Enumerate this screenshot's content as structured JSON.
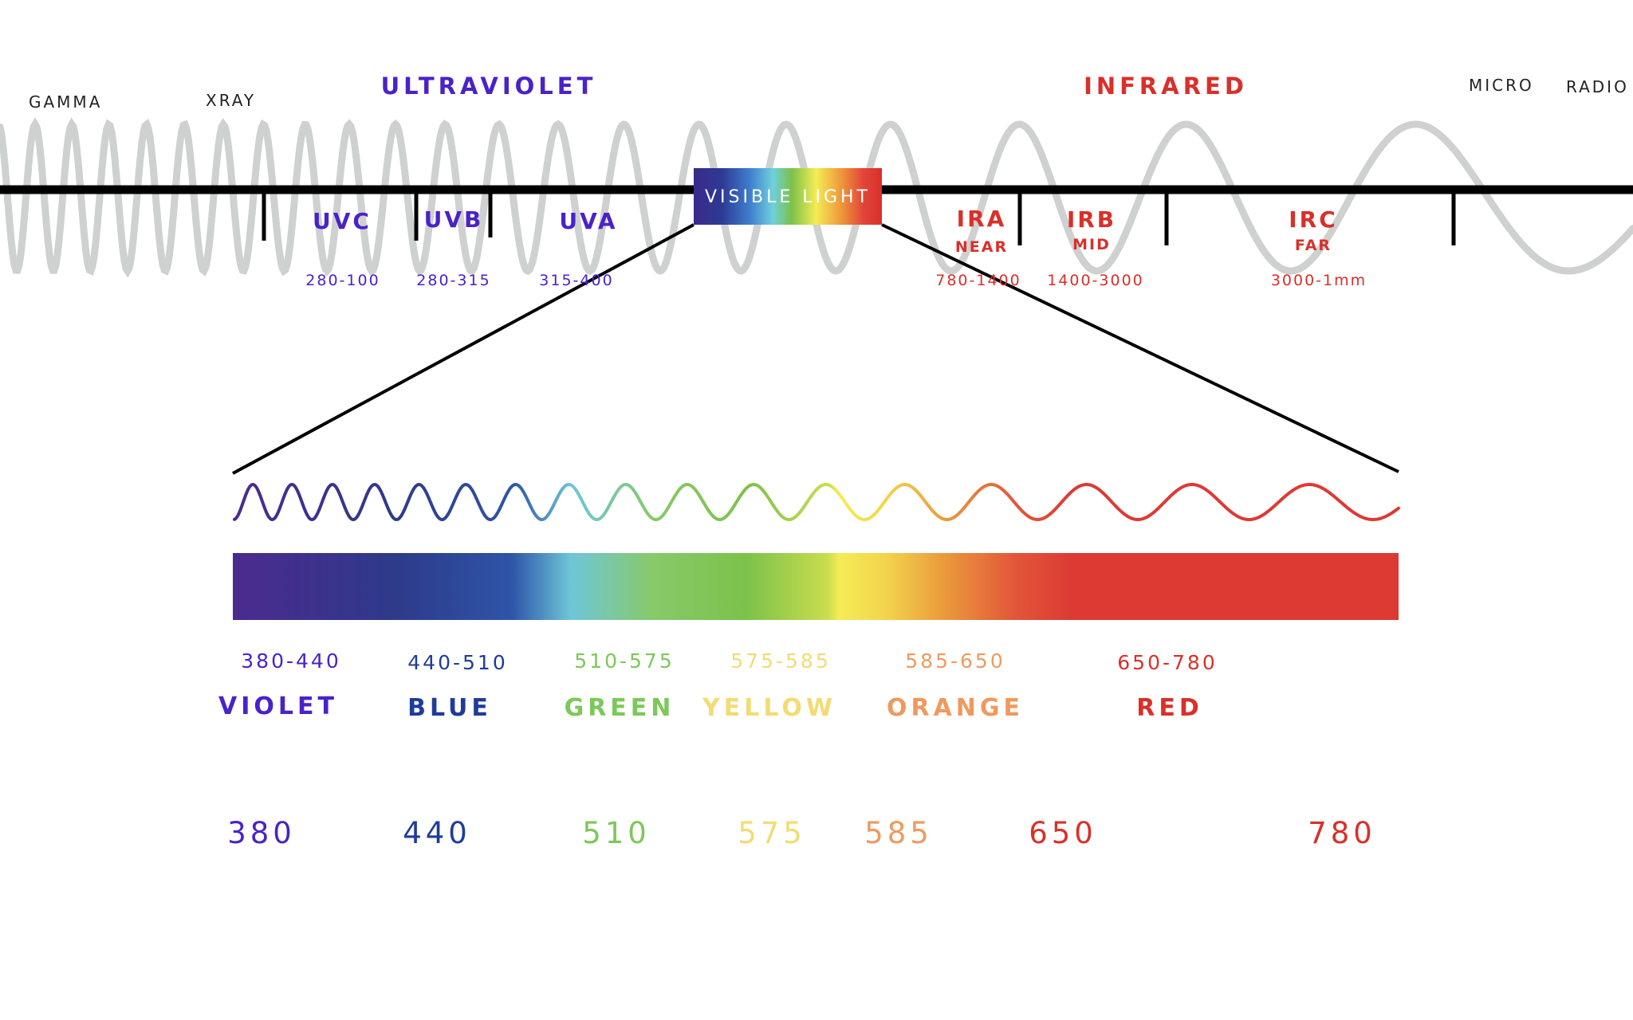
{
  "spectrum": {
    "gamma": "GAMMA",
    "xray": "XRAY",
    "ultraviolet": "ULTRAVIOLET",
    "infrared": "INFRARED",
    "micro": "MICRO",
    "radio": "RADIO",
    "visible_light": "VISIBLE LIGHT"
  },
  "uv_bands": [
    {
      "name": "UVC",
      "range": "280-100"
    },
    {
      "name": "UVB",
      "range": "280-315"
    },
    {
      "name": "UVA",
      "range": "315-400"
    }
  ],
  "ir_bands": [
    {
      "name": "IRA",
      "sub": "NEAR",
      "range": "780-1400"
    },
    {
      "name": "IRB",
      "sub": "MID",
      "range": "1400-3000"
    },
    {
      "name": "IRC",
      "sub": "FAR",
      "range": "3000-1mm"
    }
  ],
  "visible_colors": [
    {
      "range": "380-440",
      "name": "VIOLET",
      "color": "#4a22c8"
    },
    {
      "range": "440-510",
      "name": "BLUE",
      "color": "#1f3c9a"
    },
    {
      "range": "510-575",
      "name": "GREEN",
      "color": "#7cc85a"
    },
    {
      "range": "575-585",
      "name": "YELLOW",
      "color": "#f2dc73"
    },
    {
      "range": "585-650",
      "name": "ORANGE",
      "color": "#ee9a5e"
    },
    {
      "range": "650-780",
      "name": "RED",
      "color": "#d9302a"
    }
  ],
  "wavelength_marks": [
    {
      "value": "380",
      "color": "#4a22c8"
    },
    {
      "value": "440",
      "color": "#1f3c9a"
    },
    {
      "value": "510",
      "color": "#7cc85a"
    },
    {
      "value": "575",
      "color": "#f2dc73"
    },
    {
      "value": "585",
      "color": "#ee9a5e"
    },
    {
      "value": "650",
      "color": "#d9302a"
    },
    {
      "value": "780",
      "color": "#d9302a"
    }
  ],
  "colors": {
    "uv_text": "#4a22c8",
    "ir_text": "#d9302a",
    "axis": "#000000",
    "background_wave": "#c7c9c9"
  }
}
